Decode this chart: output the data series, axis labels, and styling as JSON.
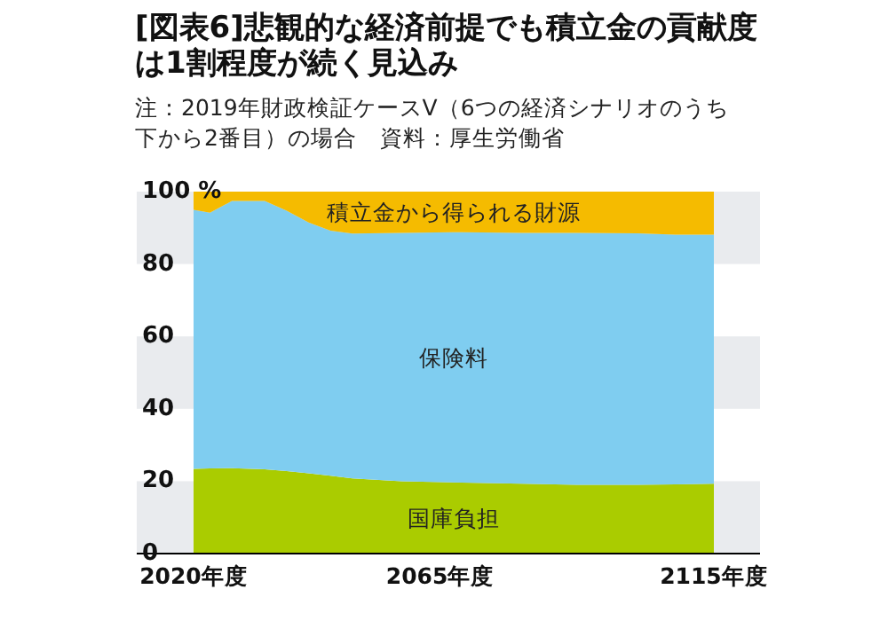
{
  "chart_data": {
    "type": "area",
    "stacked": true,
    "title": "[図表6]悲観的な経済前提でも積立金の貢献度は1割程度が続く見込み",
    "subtitle": "注：2019年財政検証ケースV（6つの経済シナリオのうち下から2番目）の場合　資料：厚生労働省",
    "x": [
      2020,
      2023,
      2027,
      2033,
      2037,
      2041,
      2045,
      2049,
      2058,
      2069,
      2080,
      2090,
      2101,
      2108,
      2115
    ],
    "xlim": [
      2020,
      2115
    ],
    "xticks": [
      {
        "value": 2020,
        "label": "2020年度"
      },
      {
        "value": 2065,
        "label": "2065年度"
      },
      {
        "value": 2115,
        "label": "2115年度"
      }
    ],
    "ylim": [
      0,
      100
    ],
    "yticks": [
      0,
      20,
      40,
      60,
      80,
      {
        "value": 100,
        "label": "100 %"
      }
    ],
    "bands": [
      {
        "axis": "y",
        "from": 0,
        "to": 20,
        "color": "#e9ebee"
      },
      {
        "axis": "y",
        "from": 40,
        "to": 60,
        "color": "#e9ebee"
      },
      {
        "axis": "y",
        "from": 80,
        "to": 100,
        "color": "#e9ebee"
      }
    ],
    "series": [
      {
        "name": "国庫負担",
        "color": "#aacc00",
        "values": [
          23.4,
          23.5,
          23.6,
          23.3,
          22.8,
          22.2,
          21.5,
          20.8,
          20,
          19.6,
          19.3,
          19,
          19,
          19.1,
          19.3
        ]
      },
      {
        "name": "保険料",
        "color": "#7fcdf0",
        "values": [
          71.6,
          70.7,
          73.8,
          74.1,
          71.9,
          69.3,
          67.7,
          67.6,
          68.6,
          69.2,
          69.3,
          69.6,
          69.5,
          69.0,
          68.8
        ]
      },
      {
        "name": "積立金から得られる財源",
        "color": "#f5bb00",
        "values": [
          5,
          5.8,
          2.6,
          2.6,
          5.3,
          8.5,
          10.8,
          11.6,
          11.4,
          11.2,
          11.4,
          11.4,
          11.5,
          11.9,
          11.9
        ]
      }
    ]
  }
}
